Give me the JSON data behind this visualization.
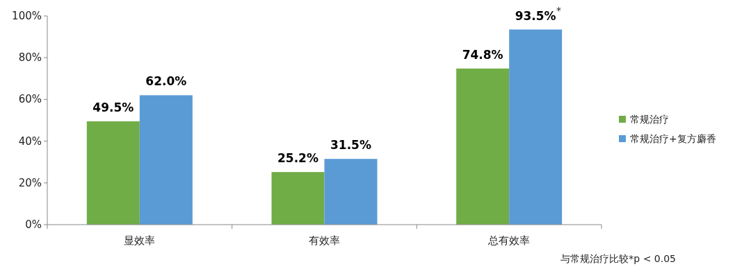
{
  "chart_data": {
    "type": "bar",
    "categories": [
      "显效率",
      "有效率",
      "总有效率"
    ],
    "series": [
      {
        "name": "常规治疗",
        "color": "#70ad47",
        "values": [
          49.5,
          25.2,
          74.8
        ],
        "value_labels": [
          "49.5%",
          "25.2%",
          "74.8%"
        ]
      },
      {
        "name": "常规治疗+复方麝香",
        "color": "#5b9bd5",
        "values": [
          62.0,
          31.5,
          93.5
        ],
        "value_labels": [
          "62.0%",
          "31.5%",
          "93.5%"
        ]
      }
    ],
    "ylim": [
      0,
      100
    ],
    "yticks": [
      {
        "value": 0,
        "label": "0%"
      },
      {
        "value": 20,
        "label": "20%"
      },
      {
        "value": 40,
        "label": "40%"
      },
      {
        "value": 60,
        "label": "60%"
      },
      {
        "value": 80,
        "label": "80%"
      },
      {
        "value": 100,
        "label": "100%"
      }
    ],
    "grid": false,
    "legend": "right",
    "annotations": [
      "*",
      "与常规治疗比较*p < 0.05"
    ]
  }
}
